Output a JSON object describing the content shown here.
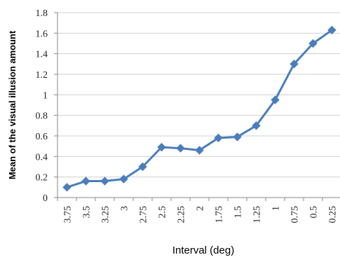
{
  "chart_data": {
    "type": "line",
    "title": "",
    "xlabel": "Interval (deg)",
    "ylabel": "Mean of the visual illusion amount",
    "categories": [
      "3.75",
      "3.5",
      "3.25",
      "3",
      "2.75",
      "2.5",
      "2.25",
      "2",
      "1.75",
      "1.5",
      "1.25",
      "1",
      "0.75",
      "0.5",
      "0.25"
    ],
    "series": [
      {
        "values": [
          0.1,
          0.16,
          0.16,
          0.18,
          0.3,
          0.49,
          0.48,
          0.46,
          0.58,
          0.59,
          0.7,
          0.95,
          1.3,
          1.5,
          1.63
        ]
      }
    ],
    "ylim": [
      0,
      1.8
    ],
    "yticks": [
      0,
      0.2,
      0.4,
      0.6,
      0.8,
      1,
      1.2,
      1.4,
      1.6,
      1.8
    ],
    "ytick_labels": [
      "0",
      "0.2",
      "0.4",
      "0.6",
      "0.8",
      "1",
      "1.2",
      "1.4",
      "1.6",
      "1.8"
    ],
    "grid": true,
    "line_color": "#4a7ebb",
    "grid_color": "#d0d0d0",
    "marker": "diamond"
  }
}
